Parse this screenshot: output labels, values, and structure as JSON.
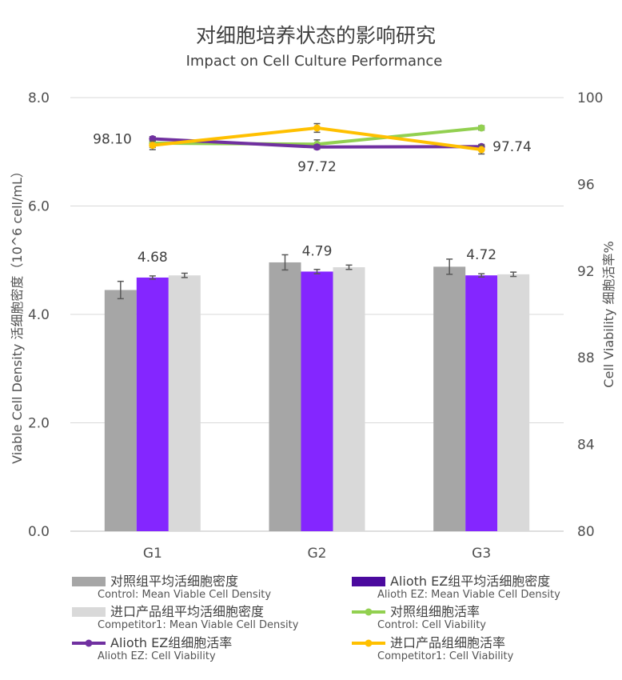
{
  "chart_data": {
    "type": "bar",
    "title": "对细胞培养状态的影响研究",
    "subtitle": "Impact on Cell Culture Performance",
    "categories": [
      "G1",
      "G2",
      "G3"
    ],
    "ylabel": "Viable Cell Density 活细胞密度（10^6 cell/mL）",
    "y2label": "Cell Viability 细胞活率%",
    "ylim": [
      0,
      8
    ],
    "y2lim": [
      80,
      100
    ],
    "y_ticks": [
      "0.0",
      "2.0",
      "4.0",
      "6.0",
      "8.0"
    ],
    "y2_ticks": [
      "80",
      "84",
      "88",
      "92",
      "96",
      "100"
    ],
    "grid": true,
    "legend_position": "bottom",
    "bar_series": [
      {
        "name": "对照组平均活细胞密度",
        "name_en": "Control: Mean Viable Cell Density",
        "color": "#a6a6a6",
        "values": [
          4.45,
          4.96,
          4.88
        ],
        "errors": [
          0.16,
          0.14,
          0.14
        ]
      },
      {
        "name": "Alioth EZ组平均活细胞密度",
        "name_en": "Alioth EZ: Mean Viable Cell Density",
        "color": "#8426ff",
        "legend_color": "#4b0a9e",
        "values": [
          4.68,
          4.79,
          4.72
        ],
        "errors": [
          0.03,
          0.04,
          0.03
        ]
      },
      {
        "name": "进口产品组平均活细胞密度",
        "name_en": "Competitor1: Mean Viable Cell Density",
        "color": "#d9d9d9",
        "values": [
          4.72,
          4.87,
          4.74
        ],
        "errors": [
          0.04,
          0.04,
          0.04
        ]
      }
    ],
    "line_series": [
      {
        "name": "对照组细胞活率",
        "name_en": "Control: Cell Viability",
        "color": "#92d050",
        "values": [
          97.9,
          97.85,
          98.6
        ],
        "errors": [
          0.2,
          0.2,
          0.1
        ]
      },
      {
        "name": "Alioth EZ组细胞活率",
        "name_en": "Alioth EZ: Cell Viability",
        "color": "#7030a0",
        "values": [
          98.1,
          97.72,
          97.74
        ],
        "errors": [
          0.1,
          0.1,
          0.1
        ]
      },
      {
        "name": "进口产品组细胞活率",
        "name_en": "Competitor1: Cell Viability",
        "color": "#ffc000",
        "values": [
          97.8,
          98.6,
          97.6
        ],
        "errors": [
          0.2,
          0.2,
          0.2
        ]
      }
    ],
    "bar_data_labels": [
      "4.68",
      "4.79",
      "4.72"
    ],
    "line_data_labels": [
      "98.10",
      "97.72",
      "97.74"
    ]
  }
}
